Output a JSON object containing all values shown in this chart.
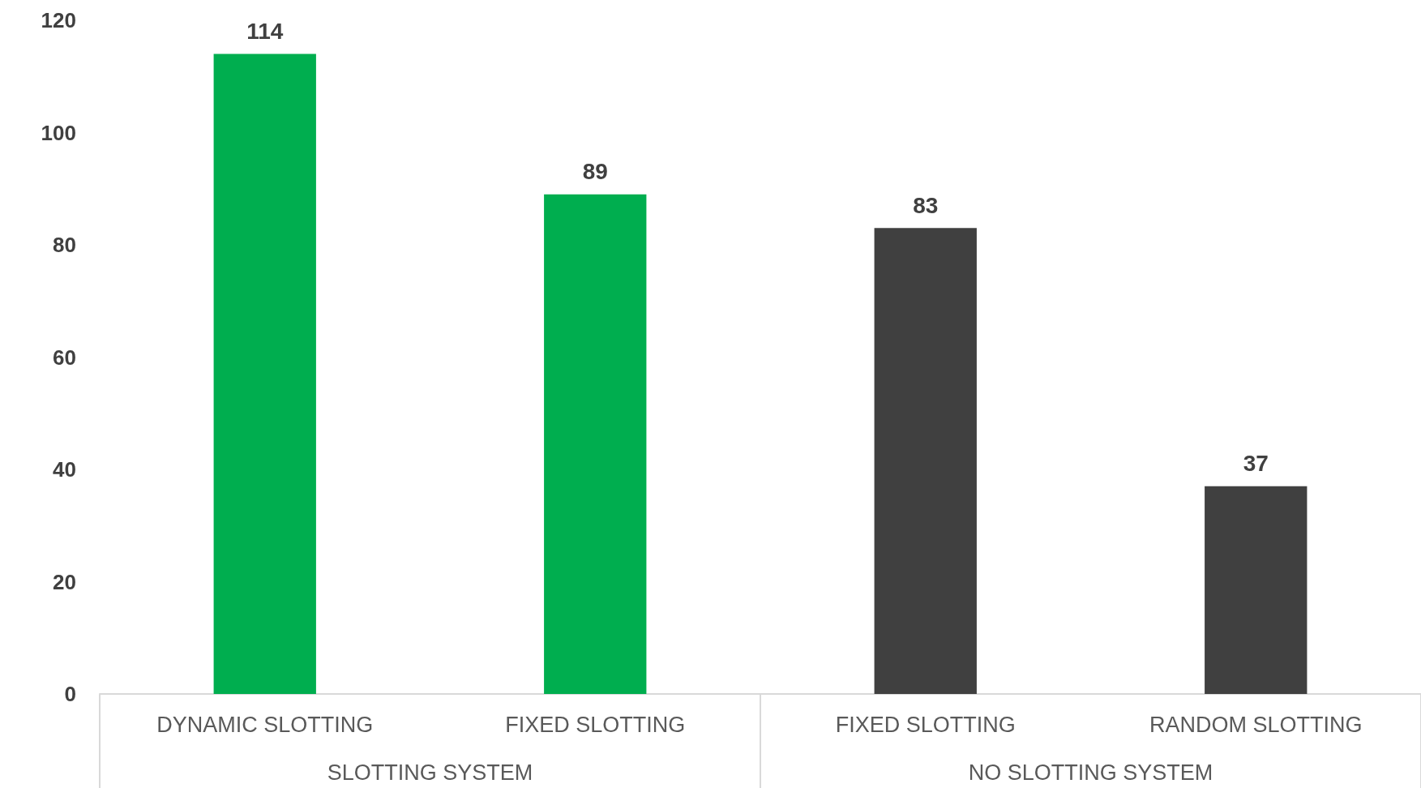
{
  "chart_data": {
    "type": "bar",
    "categories": [
      "DYNAMIC SLOTTING",
      "FIXED SLOTTING",
      "FIXED SLOTTING",
      "RANDOM SLOTTING"
    ],
    "values": [
      114,
      89,
      83,
      37
    ],
    "colors": [
      "#00ae4f",
      "#00ae4f",
      "#404040",
      "#404040"
    ],
    "ylim": [
      0,
      120
    ],
    "yticks": [
      0,
      20,
      40,
      60,
      80,
      100,
      120
    ],
    "grid": false,
    "data_labels": true,
    "annotations": [
      "SLOTTING SYSTEM",
      "NO SLOTTING SYSTEM"
    ]
  }
}
